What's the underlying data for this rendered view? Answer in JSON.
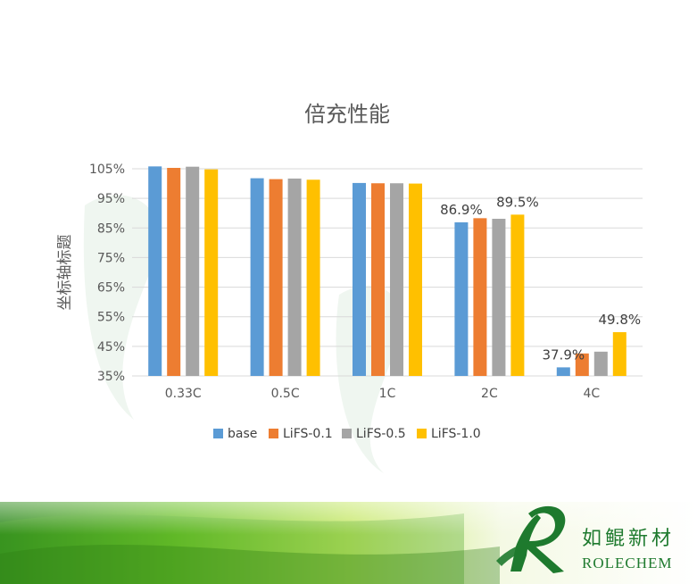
{
  "chart_data": {
    "type": "bar",
    "title": "倍充性能",
    "xlabel": "",
    "ylabel": "坐标轴标题",
    "categories": [
      "0.33C",
      "0.5C",
      "1C",
      "2C",
      "4C"
    ],
    "ylim": [
      35,
      105
    ],
    "yticks": [
      "35%",
      "45%",
      "55%",
      "65%",
      "75%",
      "85%",
      "95%",
      "105%"
    ],
    "ytick_values": [
      35,
      45,
      55,
      65,
      75,
      85,
      95,
      105
    ],
    "grid": true,
    "legend_position": "bottom",
    "series": [
      {
        "name": "base",
        "color": "#5b9bd5",
        "values": [
          105.8,
          101.8,
          100.2,
          86.9,
          37.9
        ]
      },
      {
        "name": "LiFS-0.1",
        "color": "#ed7d31",
        "values": [
          105.3,
          101.5,
          100.1,
          88.3,
          42.6
        ]
      },
      {
        "name": "LiFS-0.5",
        "color": "#a5a5a5",
        "values": [
          105.7,
          101.7,
          100.1,
          88.1,
          43.2
        ]
      },
      {
        "name": "LiFS-1.0",
        "color": "#ffc000",
        "values": [
          104.8,
          101.3,
          100.0,
          89.5,
          49.8
        ]
      }
    ],
    "data_labels": [
      {
        "category": "2C",
        "series": "base",
        "text": "86.9%"
      },
      {
        "category": "2C",
        "series": "LiFS-1.0",
        "text": "89.5%"
      },
      {
        "category": "4C",
        "series": "base",
        "text": "37.9%"
      },
      {
        "category": "4C",
        "series": "LiFS-1.0",
        "text": "49.8%"
      }
    ]
  },
  "brand": {
    "name_cn": "如鲲新材",
    "name_en": "ROLECHEM",
    "color": "#1e7a2e"
  }
}
